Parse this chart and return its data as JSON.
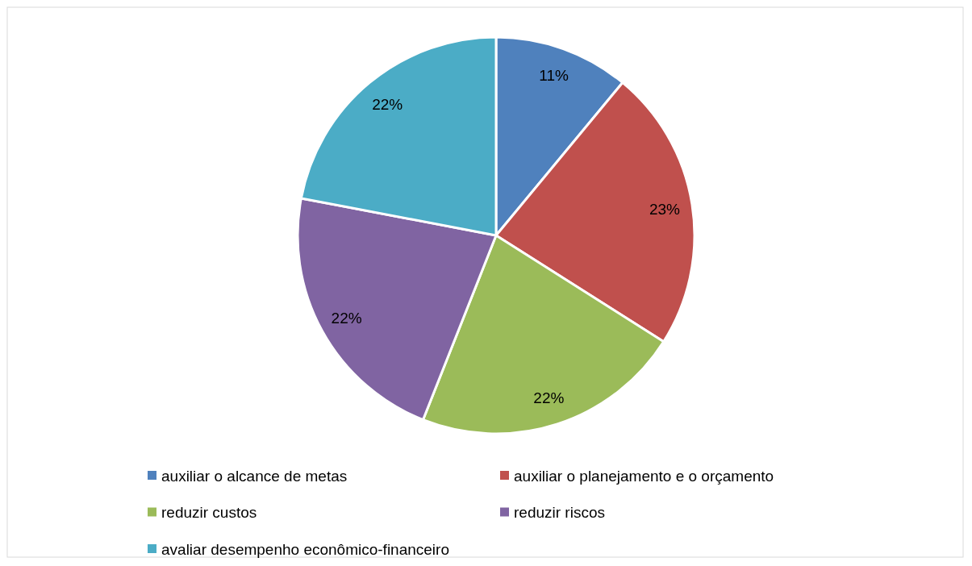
{
  "chart_data": {
    "type": "pie",
    "categories": [
      "auxiliar o alcance de metas",
      "auxiliar o planejamento e o orçamento",
      "reduzir custos",
      "reduzir riscos",
      "avaliar desempenho econômico-financeiro"
    ],
    "values": [
      11,
      23,
      22,
      22,
      22
    ],
    "colors": [
      "#4f81bd",
      "#c0504d",
      "#9bbb59",
      "#8064a2",
      "#4bacc6"
    ],
    "value_labels": [
      "11%",
      "23%",
      "22%",
      "22%",
      "22%"
    ],
    "legend": "bottom"
  }
}
